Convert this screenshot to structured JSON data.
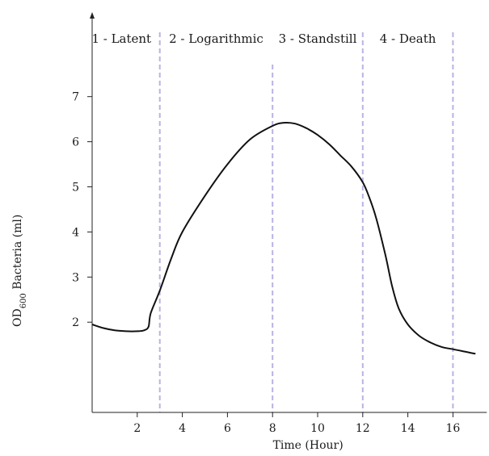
{
  "chart_data": {
    "type": "line",
    "xlabel": "Time (Hour)",
    "ylabel_prefix": "OD",
    "ylabel_subscript": "600",
    "ylabel_suffix": " Bacteria (ml)",
    "xlim": [
      0,
      17.5
    ],
    "ylim": [
      0,
      7.5
    ],
    "x_ticks": [
      2,
      4,
      6,
      8,
      10,
      12,
      14,
      16
    ],
    "y_ticks": [
      2,
      3,
      4,
      5,
      6,
      7
    ],
    "grid": false,
    "phase_boundaries": [
      3,
      8,
      12,
      16
    ],
    "phase_boundary_color": "#b8b4e2",
    "line_color": "#111111",
    "phases": [
      {
        "label": "1 - Latent",
        "x_center": 1.3
      },
      {
        "label": "2 - Logarithmic",
        "x_center": 5.5
      },
      {
        "label": "3 - Standstill",
        "x_center": 10.0
      },
      {
        "label": "4 - Death",
        "x_center": 14.0
      }
    ],
    "series": [
      {
        "x": [
          0,
          0.5,
          1.0,
          1.5,
          2.0,
          2.3,
          2.5,
          2.6,
          3.0,
          3.5,
          4.0,
          5.0,
          6.0,
          7.0,
          8.0,
          8.5,
          9.0,
          9.5,
          10.0,
          10.5,
          11.0,
          11.5,
          12.0,
          12.3,
          12.6,
          13.0,
          13.3,
          13.6,
          14.0,
          14.5,
          15.0,
          15.5,
          16.0,
          16.5,
          17.0
        ],
        "y": [
          1.95,
          1.87,
          1.82,
          1.8,
          1.8,
          1.82,
          1.9,
          2.2,
          2.7,
          3.4,
          4.0,
          4.8,
          5.5,
          6.05,
          6.35,
          6.42,
          6.4,
          6.3,
          6.15,
          5.95,
          5.7,
          5.45,
          5.1,
          4.75,
          4.3,
          3.5,
          2.8,
          2.3,
          1.95,
          1.7,
          1.55,
          1.45,
          1.4,
          1.35,
          1.3
        ]
      }
    ]
  }
}
